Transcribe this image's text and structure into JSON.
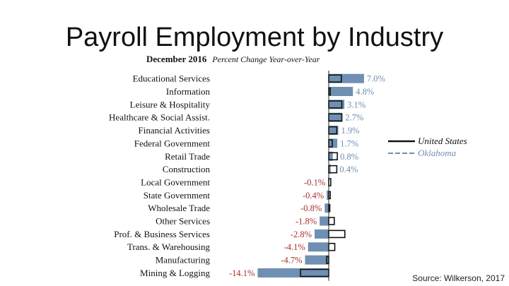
{
  "slide": {
    "title": "Payroll Employment by Industry",
    "source": "Source: Wilkerson, 2017"
  },
  "chart_data": {
    "type": "bar",
    "subtitle_bold": "December 2016",
    "subtitle_italic": "Percent Change Year-over-Year",
    "orientation": "horizontal",
    "categories": [
      "Educational Services",
      "Information",
      "Leisure & Hospitality",
      "Healthcare & Social Assist.",
      "Financial Activities",
      "Federal Government",
      "Retail Trade",
      "Construction",
      "Local Government",
      "State Government",
      "Wholesale Trade",
      "Other Services",
      "Prof. & Business Services",
      "Trans. & Warehousing",
      "Manufacturing",
      "Mining & Logging"
    ],
    "series": [
      {
        "name": "Oklahoma",
        "values": [
          7.0,
          4.8,
          3.1,
          2.7,
          1.9,
          1.7,
          0.8,
          0.4,
          -0.1,
          -0.4,
          -0.8,
          -1.8,
          -2.8,
          -4.1,
          -4.7,
          -14.1
        ],
        "color": "#6f8fb3"
      },
      {
        "name": "United States",
        "values": [
          2.5,
          0.3,
          2.6,
          2.6,
          1.6,
          0.7,
          1.7,
          1.6,
          0.4,
          0.3,
          0.2,
          1.1,
          3.2,
          1.2,
          -0.4,
          -5.6
        ],
        "color": "#111111"
      }
    ],
    "data_labels": [
      "7.0%",
      "4.8%",
      "3.1%",
      "2.7%",
      "1.9%",
      "1.7%",
      "0.8%",
      "0.4%",
      "-0.1%",
      "-0.4%",
      "-0.8%",
      "-1.8%",
      "-2.8%",
      "-4.1%",
      "-4.7%",
      "-14.1%"
    ],
    "positive_label_color": "#6f8fb3",
    "negative_label_color": "#a8322d",
    "xlim": [
      -15,
      8
    ],
    "grid": false,
    "legend": {
      "placement": "right",
      "entries": [
        {
          "name": "United States",
          "style": "solid",
          "color": "#111111"
        },
        {
          "name": "Oklahoma",
          "style": "dashed",
          "color": "#6f8fb3"
        }
      ]
    }
  }
}
